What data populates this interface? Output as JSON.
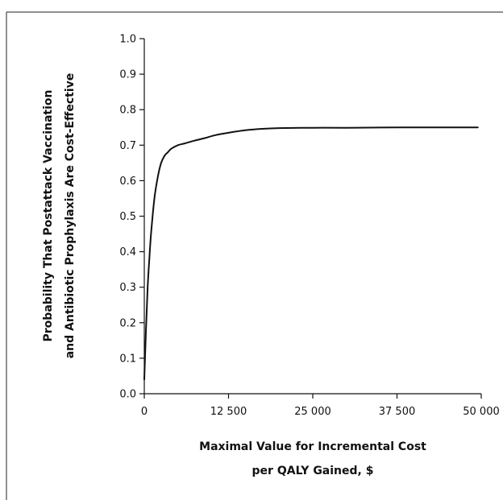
{
  "chart_data": {
    "type": "line",
    "title": "",
    "xlabel_lines": [
      "Maximal Value for Incremental Cost",
      "per QALY Gained, $"
    ],
    "ylabel_lines": [
      "Probability That Postattack Vaccination",
      "and Antibiotic Prophylaxis Are Cost-Effective"
    ],
    "xlim": [
      0,
      50000
    ],
    "ylim": [
      0,
      1.0
    ],
    "x_ticks": [
      0,
      12500,
      25000,
      37500,
      50000
    ],
    "x_tick_labels": [
      "0",
      "12 500",
      "25 000",
      "37 500",
      "50 000"
    ],
    "y_ticks": [
      0.0,
      0.1,
      0.2,
      0.3,
      0.4,
      0.5,
      0.6,
      0.7,
      0.8,
      0.9,
      1.0
    ],
    "y_tick_labels": [
      "0.0",
      "0.1",
      "0.2",
      "0.3",
      "0.4",
      "0.5",
      "0.6",
      "0.7",
      "0.8",
      "0.9",
      "1.0"
    ],
    "grid": false,
    "series": [
      {
        "x": [
          0,
          250,
          500,
          750,
          1000,
          1500,
          2000,
          2500,
          3000,
          3500,
          4000,
          5000,
          6000,
          7500,
          9000,
          10500,
          12500,
          15000,
          17500,
          20000,
          25000,
          30000,
          37500,
          45000,
          49500
        ],
        "y": [
          0.04,
          0.18,
          0.3,
          0.38,
          0.45,
          0.55,
          0.61,
          0.65,
          0.67,
          0.68,
          0.69,
          0.7,
          0.705,
          0.713,
          0.72,
          0.728,
          0.735,
          0.742,
          0.746,
          0.748,
          0.749,
          0.749,
          0.75,
          0.75,
          0.75
        ],
        "color": "#111111"
      }
    ]
  }
}
